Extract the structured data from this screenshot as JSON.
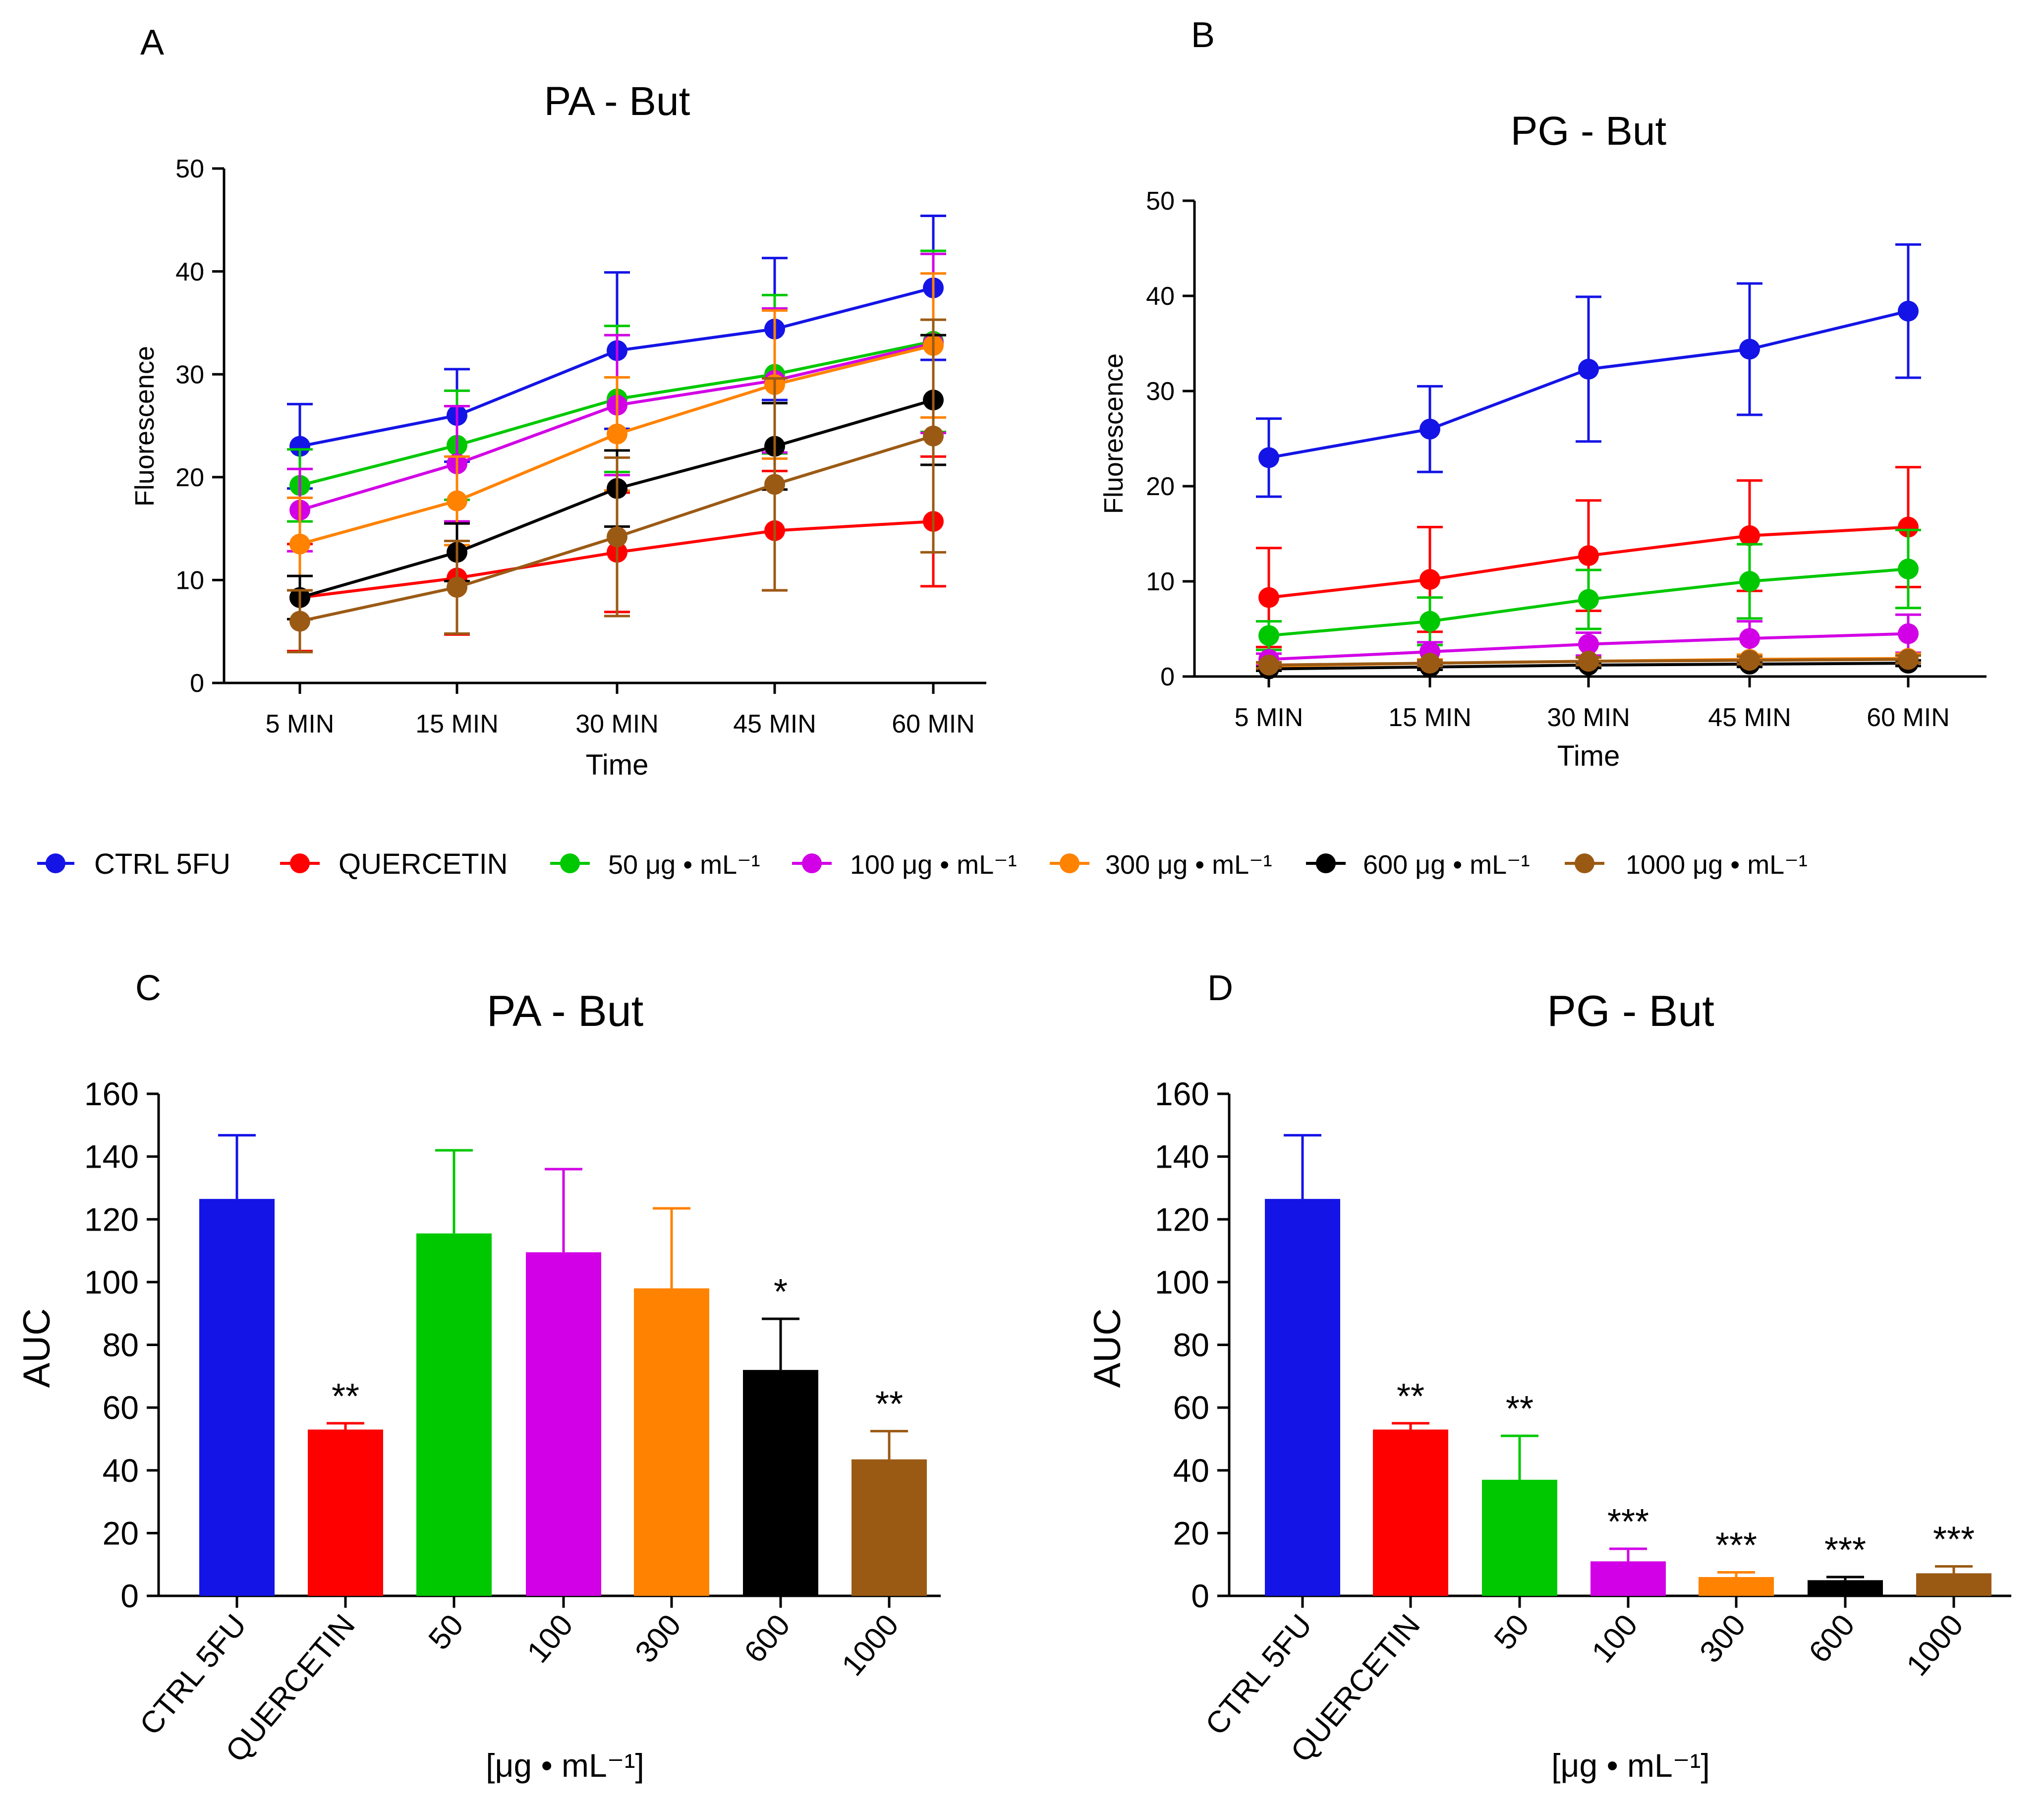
{
  "legend": [
    {
      "label": "CTRL 5FU",
      "color": "#1414e6"
    },
    {
      "label": "QUERCETIN",
      "color": "#ff0000"
    },
    {
      "label": "50 μg • mL⁻¹",
      "color": "#00c800"
    },
    {
      "label": "100 μg • mL⁻¹",
      "color": "#d200e6"
    },
    {
      "label": "300 μg • mL⁻¹",
      "color": "#ff8200"
    },
    {
      "label": "600 μg • mL⁻¹",
      "color": "#000000"
    },
    {
      "label": "1000 μg • mL⁻¹",
      "color": "#9b5a14"
    }
  ],
  "chart_data": [
    {
      "panel": "A",
      "type": "line",
      "title": "PA - But",
      "xlabel": "Time",
      "ylabel": "Fluorescence",
      "ylim": [
        0,
        50
      ],
      "yticks": [
        0,
        10,
        20,
        30,
        40,
        50
      ],
      "categories": [
        "5 MIN",
        "15 MIN",
        "30 MIN",
        "45 MIN",
        "60 MIN"
      ],
      "series": [
        {
          "name": "CTRL 5FU",
          "color": "#1414e6",
          "values": [
            23,
            26,
            32.3,
            34.4,
            38.4
          ],
          "errors": [
            4.1,
            4.5,
            7.6,
            6.9,
            7.0
          ]
        },
        {
          "name": "QUERCETIN",
          "color": "#ff0000",
          "values": [
            8.3,
            10.2,
            12.7,
            14.8,
            15.7
          ],
          "errors": [
            5.2,
            5.5,
            5.8,
            5.8,
            6.3
          ]
        },
        {
          "name": "50 μg • mL⁻¹",
          "color": "#00c800",
          "values": [
            19.2,
            23.1,
            27.6,
            30.0,
            33.2
          ],
          "errors": [
            3.5,
            5.3,
            7.1,
            7.7,
            8.8
          ]
        },
        {
          "name": "100 μg • mL⁻¹",
          "color": "#d200e6",
          "values": [
            16.8,
            21.3,
            27.0,
            29.4,
            33.0
          ],
          "errors": [
            4.0,
            5.6,
            6.8,
            7.0,
            8.7
          ]
        },
        {
          "name": "300 μg • mL⁻¹",
          "color": "#ff8200",
          "values": [
            13.5,
            17.7,
            24.2,
            29.0,
            32.8
          ],
          "errors": [
            4.5,
            4.3,
            5.5,
            7.2,
            7.0
          ]
        },
        {
          "name": "600 μg • mL⁻¹",
          "color": "#000000",
          "values": [
            8.3,
            12.7,
            18.9,
            23.0,
            27.5
          ],
          "errors": [
            2.1,
            2.8,
            3.7,
            4.2,
            6.3
          ]
        },
        {
          "name": "1000 μg • mL⁻¹",
          "color": "#9b5a14",
          "values": [
            6.0,
            9.3,
            14.2,
            19.3,
            24.0
          ],
          "errors": [
            3.0,
            4.5,
            7.7,
            10.3,
            11.3
          ]
        }
      ]
    },
    {
      "panel": "B",
      "type": "line",
      "title": "PG - But",
      "xlabel": "Time",
      "ylabel": "Fluorescence",
      "ylim": [
        0,
        50
      ],
      "yticks": [
        0,
        10,
        20,
        30,
        40,
        50
      ],
      "categories": [
        "5 MIN",
        "15 MIN",
        "30 MIN",
        "45 MIN",
        "60 MIN"
      ],
      "series": [
        {
          "name": "CTRL 5FU",
          "color": "#1414e6",
          "values": [
            23,
            26,
            32.3,
            34.4,
            38.4
          ],
          "errors": [
            4.1,
            4.5,
            7.6,
            6.9,
            7.0
          ]
        },
        {
          "name": "QUERCETIN",
          "color": "#ff0000",
          "values": [
            8.3,
            10.2,
            12.7,
            14.8,
            15.7
          ],
          "errors": [
            5.2,
            5.5,
            5.8,
            5.8,
            6.3
          ]
        },
        {
          "name": "50 μg • mL⁻¹",
          "color": "#00c800",
          "values": [
            4.3,
            5.8,
            8.1,
            10.0,
            11.3
          ],
          "errors": [
            1.5,
            2.5,
            3.1,
            3.9,
            4.1
          ]
        },
        {
          "name": "100 μg • mL⁻¹",
          "color": "#d200e6",
          "values": [
            1.8,
            2.6,
            3.4,
            4.0,
            4.5
          ],
          "errors": [
            0.6,
            1.0,
            1.2,
            1.8,
            2.0
          ]
        },
        {
          "name": "300 μg • mL⁻¹",
          "color": "#ff8200",
          "values": [
            1.1,
            1.4,
            1.6,
            1.8,
            1.9
          ],
          "errors": [
            0.3,
            0.4,
            0.4,
            0.5,
            0.5
          ]
        },
        {
          "name": "600 μg • mL⁻¹",
          "color": "#000000",
          "values": [
            0.8,
            1.0,
            1.2,
            1.3,
            1.4
          ],
          "errors": [
            0.2,
            0.3,
            0.3,
            0.3,
            0.3
          ]
        },
        {
          "name": "1000 μg • mL⁻¹",
          "color": "#9b5a14",
          "values": [
            1.2,
            1.4,
            1.6,
            1.7,
            1.8
          ],
          "errors": [
            0.3,
            0.3,
            0.4,
            0.4,
            0.4
          ]
        }
      ]
    },
    {
      "panel": "C",
      "type": "bar",
      "title": "PA - But",
      "xlabel": "[μg • mL⁻¹]",
      "ylabel": "AUC",
      "ylim": [
        0,
        160
      ],
      "yticks": [
        0,
        20,
        40,
        60,
        80,
        100,
        120,
        140,
        160
      ],
      "categories": [
        "CTRL 5FU",
        "QUERCETIN",
        "50",
        "100",
        "300",
        "600",
        "1000"
      ],
      "colors": [
        "#1414e6",
        "#ff0000",
        "#00c800",
        "#d200e6",
        "#ff8200",
        "#000000",
        "#9b5a14"
      ],
      "values": [
        126.5,
        53,
        115.5,
        109.5,
        98,
        72,
        43.5
      ],
      "errors": [
        20.3,
        2,
        26.5,
        26.5,
        25.5,
        16.3,
        9
      ],
      "significance": [
        "",
        "**",
        "",
        "",
        "",
        "*",
        "**"
      ]
    },
    {
      "panel": "D",
      "type": "bar",
      "title": "PG - But",
      "xlabel": "[μg • mL⁻¹]",
      "ylabel": "AUC",
      "ylim": [
        0,
        160
      ],
      "yticks": [
        0,
        20,
        40,
        60,
        80,
        100,
        120,
        140,
        160
      ],
      "categories": [
        "CTRL 5FU",
        "QUERCETIN",
        "50",
        "100",
        "300",
        "600",
        "1000"
      ],
      "colors": [
        "#1414e6",
        "#ff0000",
        "#00c800",
        "#d200e6",
        "#ff8200",
        "#000000",
        "#9b5a14"
      ],
      "values": [
        126.5,
        53,
        37,
        11,
        6,
        5,
        7.2
      ],
      "errors": [
        20.3,
        2,
        14,
        4,
        1.5,
        1,
        2.2
      ],
      "significance": [
        "",
        "**",
        "**",
        "***",
        "***",
        "***",
        "***"
      ]
    }
  ]
}
